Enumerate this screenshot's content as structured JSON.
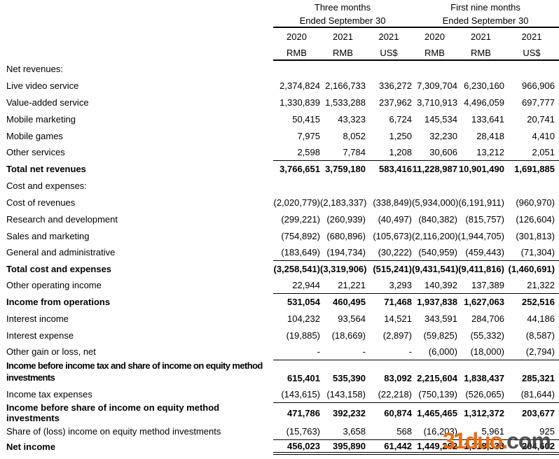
{
  "header": {
    "period1": {
      "line1": "Three months",
      "line2": "Ended September 30"
    },
    "period2": {
      "line1": "First nine months",
      "line2": "Ended September 30"
    },
    "years": [
      "2020",
      "2021",
      "2021",
      "2020",
      "2021",
      "2021"
    ],
    "currencies": [
      "RMB",
      "RMB",
      "US$",
      "RMB",
      "RMB",
      "US$"
    ]
  },
  "rows": [
    {
      "label": "Net revenues:",
      "values": [
        "",
        "",
        "",
        "",
        "",
        ""
      ],
      "bold": false,
      "rule": false,
      "tall": false,
      "double_rule": false
    },
    {
      "label": "Live video service",
      "values": [
        "2,374,824",
        "2,166,733",
        "336,272",
        "7,309,704",
        "6,230,160",
        "966,906"
      ],
      "bold": false,
      "rule": false,
      "tall": false,
      "double_rule": false
    },
    {
      "label": "Value-added service",
      "values": [
        "1,330,839",
        "1,533,288",
        "237,962",
        "3,710,913",
        "4,496,059",
        "697,777"
      ],
      "bold": false,
      "rule": false,
      "tall": false,
      "double_rule": false
    },
    {
      "label": "Mobile marketing",
      "values": [
        "50,415",
        "43,323",
        "6,724",
        "145,534",
        "133,641",
        "20,741"
      ],
      "bold": false,
      "rule": false,
      "tall": false,
      "double_rule": false
    },
    {
      "label": "Mobile games",
      "values": [
        "7,975",
        "8,052",
        "1,250",
        "32,230",
        "28,418",
        "4,410"
      ],
      "bold": false,
      "rule": false,
      "tall": false,
      "double_rule": false
    },
    {
      "label": "Other services",
      "values": [
        "2,598",
        "7,784",
        "1,208",
        "30,606",
        "13,212",
        "2,051"
      ],
      "bold": false,
      "rule": true,
      "tall": false,
      "double_rule": false
    },
    {
      "label": "Total net revenues",
      "values": [
        "3,766,651",
        "3,759,180",
        "583,416",
        "11,228,987",
        "10,901,490",
        "1,691,885"
      ],
      "bold": true,
      "rule": false,
      "tall": false,
      "double_rule": false
    },
    {
      "label": "Cost and expenses:",
      "values": [
        "",
        "",
        "",
        "",
        "",
        ""
      ],
      "bold": false,
      "rule": false,
      "tall": false,
      "double_rule": false
    },
    {
      "label": "Cost of revenues",
      "values": [
        "(2,020,779)",
        "(2,183,337)",
        "(338,849)",
        "(5,934,000)",
        "(6,191,911)",
        "(960,970)"
      ],
      "bold": false,
      "rule": false,
      "tall": false,
      "double_rule": false
    },
    {
      "label": "Research and development",
      "values": [
        "(299,221)",
        "(260,939)",
        "(40,497)",
        "(840,382)",
        "(815,757)",
        "(126,604)"
      ],
      "bold": false,
      "rule": false,
      "tall": false,
      "double_rule": false
    },
    {
      "label": "Sales and marketing",
      "values": [
        "(754,892)",
        "(680,896)",
        "(105,673)",
        "(2,116,200)",
        "(1,944,705)",
        "(301,813)"
      ],
      "bold": false,
      "rule": false,
      "tall": false,
      "double_rule": false
    },
    {
      "label": "General and administrative",
      "values": [
        "(183,649)",
        "(194,734)",
        "(30,222)",
        "(540,959)",
        "(459,443)",
        "(71,304)"
      ],
      "bold": false,
      "rule": true,
      "tall": false,
      "double_rule": false
    },
    {
      "label": "Total cost and expenses",
      "values": [
        "(3,258,541)",
        "(3,319,906)",
        "(515,241)",
        "(9,431,541)",
        "(9,411,816)",
        "(1,460,691)"
      ],
      "bold": true,
      "rule": false,
      "tall": false,
      "double_rule": false
    },
    {
      "label": "Other operating income",
      "values": [
        "22,944",
        "21,221",
        "3,293",
        "140,392",
        "137,389",
        "21,322"
      ],
      "bold": false,
      "rule": true,
      "tall": false,
      "double_rule": false
    },
    {
      "label": "Income from operations",
      "values": [
        "531,054",
        "460,495",
        "71,468",
        "1,937,838",
        "1,627,063",
        "252,516"
      ],
      "bold": true,
      "rule": false,
      "tall": false,
      "double_rule": false
    },
    {
      "label": "Interest income",
      "values": [
        "104,232",
        "93,564",
        "14,521",
        "343,591",
        "284,706",
        "44,186"
      ],
      "bold": false,
      "rule": false,
      "tall": false,
      "double_rule": false
    },
    {
      "label": "Interest expense",
      "values": [
        "(19,885)",
        "(18,669)",
        "(2,897)",
        "(59,825)",
        "(55,332)",
        "(8,587)"
      ],
      "bold": false,
      "rule": false,
      "tall": false,
      "double_rule": false
    },
    {
      "label": "Other gain or loss, net",
      "values": [
        "-",
        "-",
        "-",
        "(6,000)",
        "(18,000)",
        "(2,794)"
      ],
      "bold": false,
      "rule": true,
      "tall": false,
      "double_rule": false
    },
    {
      "label": "Income before income tax and share of income on equity method investments",
      "values": [
        "615,401",
        "535,390",
        "83,092",
        "2,215,604",
        "1,838,437",
        "285,321"
      ],
      "bold": true,
      "rule": false,
      "tall": true,
      "double_rule": false
    },
    {
      "label": "Income tax expenses",
      "values": [
        "(143,615)",
        "(143,158)",
        "(22,218)",
        "(750,139)",
        "(526,065)",
        "(81,644)"
      ],
      "bold": false,
      "rule": true,
      "tall": false,
      "double_rule": false
    },
    {
      "label": "Income before share of income on equity method investments",
      "values": [
        "471,786",
        "392,232",
        "60,874",
        "1,465,465",
        "1,312,372",
        "203,677"
      ],
      "bold": true,
      "rule": false,
      "tall": false,
      "double_rule": false
    },
    {
      "label": "Share of (loss) income on equity method investments",
      "values": [
        "(15,763)",
        "3,658",
        "568",
        "(16,203)",
        "5,961",
        "925"
      ],
      "bold": false,
      "rule": true,
      "tall": false,
      "double_rule": false
    },
    {
      "label": "Net income",
      "values": [
        "456,023",
        "395,890",
        "61,442",
        "1,449,262",
        "1,318,333",
        "204,602"
      ],
      "bold": true,
      "rule": false,
      "tall": false,
      "double_rule": true
    }
  ],
  "watermark": {
    "brand": "31duo",
    "dot": ".",
    "suffix": "com",
    "orange_color": "#f0690a",
    "dark_color": "#3a3a3a"
  }
}
